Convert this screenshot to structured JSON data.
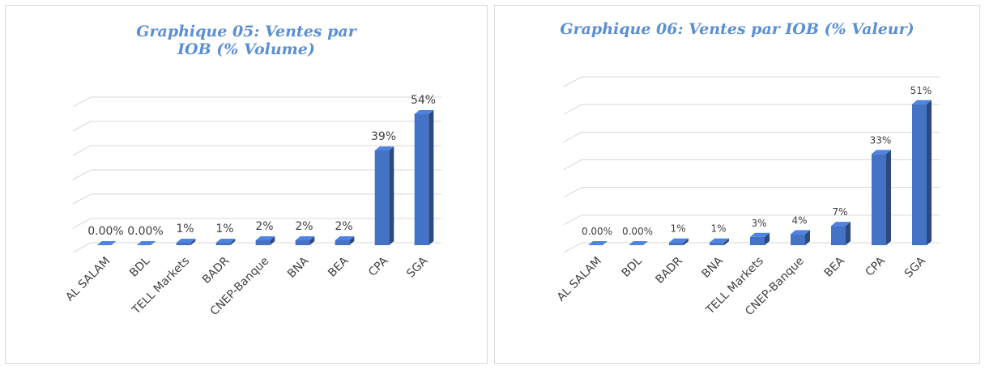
{
  "chart_data": [
    {
      "type": "bar3d",
      "title": "Graphique 05: Ventes par IOB (% Volume)",
      "categories": [
        "AL SALAM",
        "BDL",
        "TELL Markets",
        "BADR",
        "CNEP-Banque",
        "BNA",
        "BEA",
        "CPA",
        "SGA"
      ],
      "values": [
        0,
        0,
        1,
        1,
        2,
        2,
        2,
        39,
        54
      ],
      "value_labels": [
        "0.00%",
        "0.00%",
        "1%",
        "1%",
        "2%",
        "2%",
        "2%",
        "39%",
        "54%"
      ],
      "color": "#4472c4",
      "ylim": [
        0,
        60
      ],
      "yticks": [
        0,
        10,
        20,
        30,
        40,
        50,
        60
      ],
      "grid": true
    },
    {
      "type": "bar3d",
      "title": "Graphique 06: Ventes par IOB (% Valeur)",
      "categories": [
        "AL SALAM",
        "BDL",
        "BADR",
        "BNA",
        "TELL Markets",
        "CNEP-Banque",
        "BEA",
        "CPA",
        "SGA"
      ],
      "values": [
        0,
        0,
        1,
        1,
        3,
        4,
        7,
        33,
        51
      ],
      "value_labels": [
        "0.00%",
        "0.00%",
        "1%",
        "1%",
        "3%",
        "4%",
        "7%",
        "33%",
        "51%"
      ],
      "color": "#4472c4",
      "ylim": [
        0,
        60
      ],
      "yticks": [
        0,
        10,
        20,
        30,
        40,
        50,
        60
      ],
      "grid": true
    }
  ]
}
